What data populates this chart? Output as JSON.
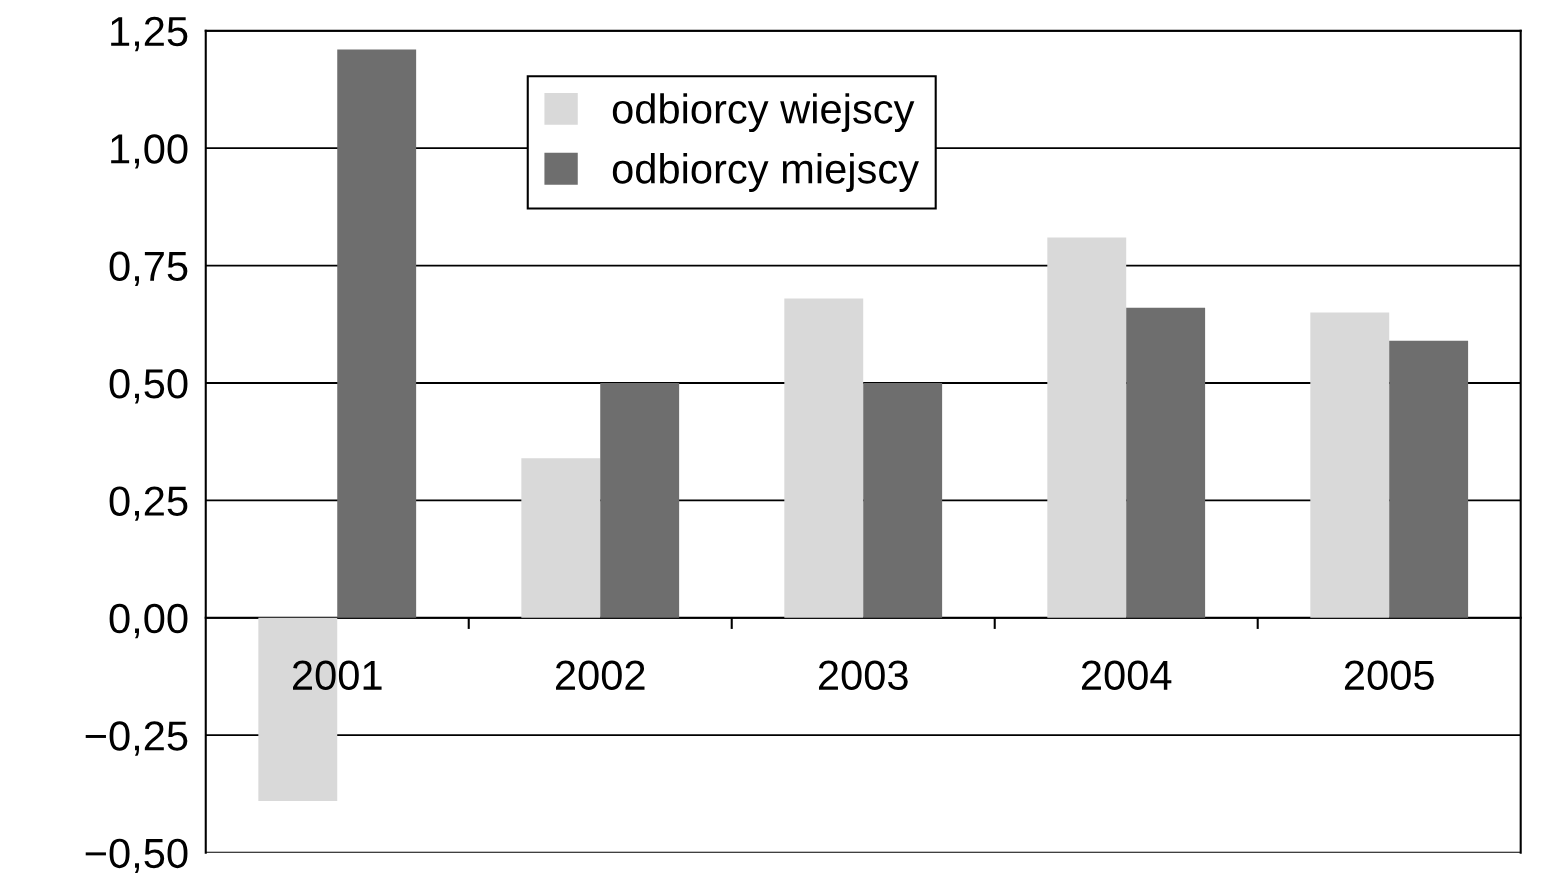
{
  "chart_data": {
    "type": "bar",
    "categories": [
      "2001",
      "2002",
      "2003",
      "2004",
      "2005"
    ],
    "series": [
      {
        "name": "odbiorcy wiejscy",
        "color": "#d9d9d9",
        "values": [
          -0.39,
          0.34,
          0.68,
          0.81,
          0.65
        ]
      },
      {
        "name": "odbiorcy miejscy",
        "color": "#6e6e6e",
        "values": [
          1.21,
          0.5,
          0.5,
          0.66,
          0.59
        ]
      }
    ],
    "ylim": [
      -0.5,
      1.25
    ],
    "yticks": [
      {
        "value": -0.5,
        "label": "−0,50"
      },
      {
        "value": -0.25,
        "label": "−0,25"
      },
      {
        "value": 0,
        "label": "0,00"
      },
      {
        "value": 0.25,
        "label": "0,25"
      },
      {
        "value": 0.5,
        "label": "0,50"
      },
      {
        "value": 0.75,
        "label": "0,75"
      },
      {
        "value": 1.0,
        "label": "1,00"
      },
      {
        "value": 1.25,
        "label": "1,25"
      }
    ],
    "grid": "y",
    "legend": "top"
  }
}
